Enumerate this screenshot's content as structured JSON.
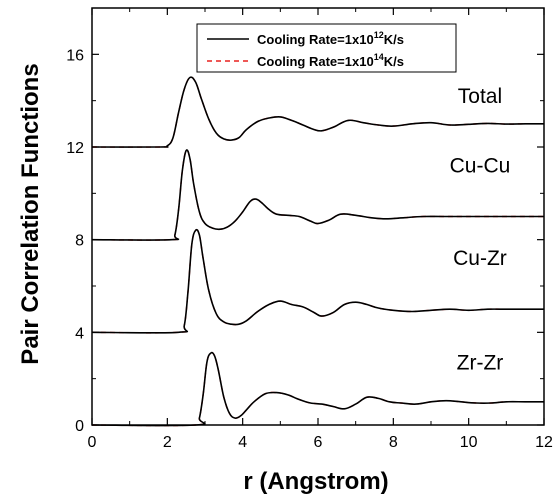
{
  "chart_data": {
    "type": "line",
    "xlabel": "r (Angstrom)",
    "ylabel": "Pair Correlation Functions",
    "xlim": [
      0,
      12
    ],
    "ylim": [
      0,
      18
    ],
    "xticks": [
      0,
      2,
      4,
      6,
      8,
      10,
      12
    ],
    "yticks": [
      0,
      4,
      8,
      12,
      16
    ],
    "grid": false,
    "legend_position": "top-right",
    "legend": [
      {
        "text": "Cooling Rate=1x10",
        "sup": "12",
        "unit": "K/s",
        "color": "#000000",
        "dash": "solid"
      },
      {
        "text": "Cooling Rate=1x10",
        "sup": "14",
        "unit": "K/s",
        "color": "#e8201e",
        "dash": "dashed"
      }
    ],
    "curves": [
      {
        "label": "Total",
        "label_x": 10.3,
        "label_y": 13.9,
        "x": [
          0,
          1.8,
          2.0,
          2.15,
          2.3,
          2.45,
          2.6,
          2.75,
          2.9,
          3.1,
          3.3,
          3.5,
          3.7,
          3.9,
          4.1,
          4.4,
          4.7,
          5.0,
          5.3,
          5.6,
          5.9,
          6.1,
          6.4,
          6.8,
          7.2,
          7.6,
          8.0,
          8.5,
          9.0,
          9.5,
          10.0,
          10.5,
          11.0,
          11.5,
          12.0
        ],
        "y": [
          12.0,
          12.0,
          12.05,
          12.4,
          13.5,
          14.5,
          15.0,
          14.8,
          14.1,
          13.2,
          12.6,
          12.35,
          12.3,
          12.4,
          12.75,
          13.1,
          13.25,
          13.3,
          13.15,
          12.95,
          12.75,
          12.7,
          12.85,
          13.15,
          13.05,
          12.95,
          12.9,
          13.0,
          13.05,
          12.95,
          12.98,
          13.02,
          12.99,
          13.0,
          13.0
        ]
      },
      {
        "label": "Cu-Cu",
        "label_x": 10.3,
        "label_y": 10.9,
        "x": [
          0,
          2.1,
          2.2,
          2.3,
          2.4,
          2.5,
          2.6,
          2.7,
          2.85,
          3.0,
          3.2,
          3.4,
          3.6,
          3.8,
          4.0,
          4.2,
          4.35,
          4.5,
          4.7,
          4.9,
          5.2,
          5.5,
          5.8,
          6.0,
          6.3,
          6.6,
          7.0,
          7.4,
          7.8,
          8.3,
          8.8,
          9.3,
          9.8,
          10.3,
          10.8,
          11.4,
          12.0
        ],
        "y": [
          8.0,
          8.0,
          8.2,
          9.3,
          11.0,
          11.85,
          11.5,
          10.4,
          9.2,
          8.7,
          8.5,
          8.45,
          8.55,
          8.8,
          9.2,
          9.65,
          9.75,
          9.6,
          9.3,
          9.1,
          9.05,
          9.0,
          8.8,
          8.7,
          8.85,
          9.1,
          9.05,
          8.95,
          8.9,
          8.95,
          9.0,
          9.0,
          9.0,
          9.0,
          9.0,
          9.0,
          9.0
        ]
      },
      {
        "label": "Cu-Zr",
        "label_x": 10.3,
        "label_y": 6.9,
        "x": [
          0,
          2.3,
          2.45,
          2.55,
          2.65,
          2.75,
          2.85,
          2.95,
          3.1,
          3.3,
          3.5,
          3.7,
          3.9,
          4.1,
          4.4,
          4.7,
          5.0,
          5.3,
          5.6,
          5.9,
          6.1,
          6.4,
          6.7,
          7.0,
          7.3,
          7.6,
          8.0,
          8.5,
          9.0,
          9.5,
          10.0,
          10.5,
          11.0,
          11.5,
          12.0
        ],
        "y": [
          4.0,
          4.0,
          4.3,
          5.8,
          7.8,
          8.4,
          8.2,
          7.2,
          5.8,
          4.8,
          4.45,
          4.35,
          4.35,
          4.5,
          4.9,
          5.2,
          5.35,
          5.2,
          5.1,
          4.85,
          4.7,
          4.85,
          5.2,
          5.3,
          5.2,
          5.05,
          4.95,
          4.9,
          4.95,
          5.0,
          4.95,
          5.0,
          5.0,
          5.0,
          5.0
        ]
      },
      {
        "label": "Zr-Zr",
        "label_x": 10.3,
        "label_y": 2.4,
        "x": [
          0,
          2.75,
          2.85,
          2.95,
          3.05,
          3.15,
          3.25,
          3.35,
          3.5,
          3.65,
          3.8,
          3.95,
          4.1,
          4.3,
          4.6,
          4.9,
          5.2,
          5.5,
          5.8,
          6.1,
          6.4,
          6.7,
          7.0,
          7.3,
          7.6,
          7.9,
          8.2,
          8.6,
          9.0,
          9.4,
          9.8,
          10.2,
          10.6,
          11.0,
          11.5,
          12.0
        ],
        "y": [
          0.0,
          0.0,
          0.3,
          1.3,
          2.7,
          3.1,
          3.0,
          2.4,
          1.2,
          0.5,
          0.3,
          0.4,
          0.65,
          1.0,
          1.35,
          1.4,
          1.3,
          1.1,
          0.95,
          0.9,
          0.8,
          0.7,
          0.9,
          1.2,
          1.15,
          1.0,
          0.95,
          0.9,
          1.0,
          1.05,
          1.0,
          0.95,
          0.95,
          1.0,
          1.0,
          1.0
        ]
      }
    ]
  }
}
